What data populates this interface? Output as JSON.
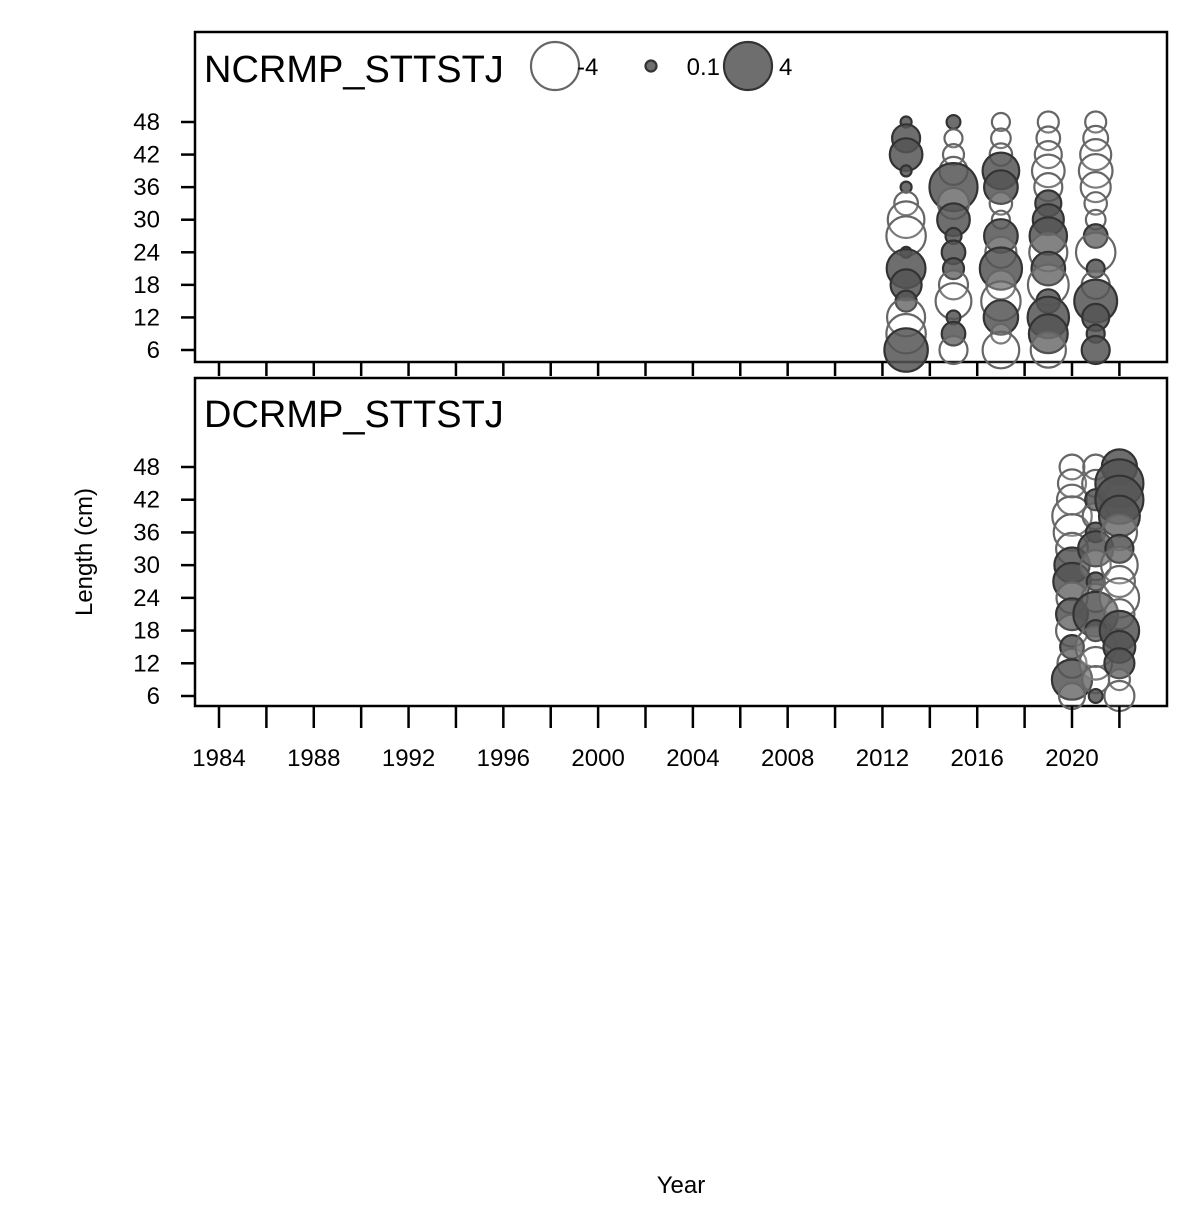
{
  "chart_data": {
    "type": "scatter",
    "subtype": "bubble",
    "xlabel": "Year",
    "ylabel": "Length (cm)",
    "xlim": [
      1982.6,
      2023.8
    ],
    "ylim": [
      4,
      58
    ],
    "x_ticks": [
      1984,
      1986,
      1988,
      1990,
      1992,
      1994,
      1996,
      1998,
      2000,
      2002,
      2004,
      2006,
      2008,
      2010,
      2012,
      2014,
      2016,
      2018,
      2020,
      2022
    ],
    "x_tick_labels": [
      "1984",
      "1988",
      "1992",
      "1996",
      "2000",
      "2004",
      "2008",
      "2012",
      "2016",
      "2020"
    ],
    "x_tick_label_years": [
      1984,
      1988,
      1992,
      1996,
      2000,
      2004,
      2008,
      2012,
      2016,
      2020
    ],
    "y_ticks": [
      6,
      12,
      18,
      24,
      30,
      36,
      42,
      48
    ],
    "y_tick_labels": [
      "6",
      "12",
      "18",
      "24",
      "30",
      "36",
      "42",
      "48"
    ],
    "legend": {
      "placement": "top",
      "entries": [
        {
          "label": "-4",
          "value": -4
        },
        {
          "label": "0.1",
          "value": 0.1
        },
        {
          "label": "4",
          "value": 4
        }
      ]
    },
    "colors": {
      "positive_fill": "#555555",
      "positive_stroke": "#333333",
      "negative_fill": "#ffffff",
      "negative_stroke": "#666666"
    },
    "panels": [
      {
        "title": "NCRMP_STTSTJ",
        "points": [
          {
            "x": 2013,
            "y": 48,
            "v": 0.1
          },
          {
            "x": 2013,
            "y": 45,
            "v": 1.2
          },
          {
            "x": 2013,
            "y": 42,
            "v": 1.7
          },
          {
            "x": 2013,
            "y": 39,
            "v": 0.1
          },
          {
            "x": 2013,
            "y": 36,
            "v": 0.1
          },
          {
            "x": 2013,
            "y": 33,
            "v": -0.8
          },
          {
            "x": 2013,
            "y": 30,
            "v": -2.2
          },
          {
            "x": 2013,
            "y": 27,
            "v": -2.6
          },
          {
            "x": 2013,
            "y": 24,
            "v": 0.1
          },
          {
            "x": 2013,
            "y": 21,
            "v": 2.5
          },
          {
            "x": 2013,
            "y": 18,
            "v": 1.5
          },
          {
            "x": 2013,
            "y": 15,
            "v": 0.6
          },
          {
            "x": 2013,
            "y": 12,
            "v": -2.4
          },
          {
            "x": 2013,
            "y": 9,
            "v": -2.6
          },
          {
            "x": 2013,
            "y": 6,
            "v": 3.2
          },
          {
            "x": 2015,
            "y": 48,
            "v": 0.2
          },
          {
            "x": 2015,
            "y": 45,
            "v": -0.4
          },
          {
            "x": 2015,
            "y": 42,
            "v": -0.6
          },
          {
            "x": 2015,
            "y": 39,
            "v": -1.2
          },
          {
            "x": 2015,
            "y": 36,
            "v": 4.0
          },
          {
            "x": 2015,
            "y": 33,
            "v": -1.5
          },
          {
            "x": 2015,
            "y": 30,
            "v": 1.7
          },
          {
            "x": 2015,
            "y": 27,
            "v": 0.3
          },
          {
            "x": 2015,
            "y": 24,
            "v": 0.8
          },
          {
            "x": 2015,
            "y": 21,
            "v": 0.6
          },
          {
            "x": 2015,
            "y": 18,
            "v": -1.3
          },
          {
            "x": 2015,
            "y": 15,
            "v": -2.1
          },
          {
            "x": 2015,
            "y": 12,
            "v": 0.2
          },
          {
            "x": 2015,
            "y": 9,
            "v": 0.8
          },
          {
            "x": 2015,
            "y": 6,
            "v": -1.2
          },
          {
            "x": 2017,
            "y": 48,
            "v": -0.4
          },
          {
            "x": 2017,
            "y": 45,
            "v": -0.5
          },
          {
            "x": 2017,
            "y": 42,
            "v": -0.7
          },
          {
            "x": 2017,
            "y": 39,
            "v": 2.2
          },
          {
            "x": 2017,
            "y": 36,
            "v": 1.8
          },
          {
            "x": 2017,
            "y": 33,
            "v": -0.7
          },
          {
            "x": 2017,
            "y": 30,
            "v": -0.4
          },
          {
            "x": 2017,
            "y": 27,
            "v": 1.8
          },
          {
            "x": 2017,
            "y": 24,
            "v": -1.5
          },
          {
            "x": 2017,
            "y": 21,
            "v": 3.0
          },
          {
            "x": 2017,
            "y": 18,
            "v": -1.3
          },
          {
            "x": 2017,
            "y": 15,
            "v": -2.6
          },
          {
            "x": 2017,
            "y": 12,
            "v": 1.9
          },
          {
            "x": 2017,
            "y": 9,
            "v": -0.5
          },
          {
            "x": 2017,
            "y": 6,
            "v": -2.2
          },
          {
            "x": 2019,
            "y": 48,
            "v": -0.6
          },
          {
            "x": 2019,
            "y": 45,
            "v": -0.8
          },
          {
            "x": 2019,
            "y": 42,
            "v": -1.1
          },
          {
            "x": 2019,
            "y": 39,
            "v": -1.7
          },
          {
            "x": 2019,
            "y": 36,
            "v": -1.2
          },
          {
            "x": 2019,
            "y": 33,
            "v": 1.0
          },
          {
            "x": 2019,
            "y": 30,
            "v": 1.5
          },
          {
            "x": 2019,
            "y": 27,
            "v": 2.3
          },
          {
            "x": 2019,
            "y": 24,
            "v": -2.4
          },
          {
            "x": 2019,
            "y": 21,
            "v": 1.8
          },
          {
            "x": 2019,
            "y": 18,
            "v": -2.8
          },
          {
            "x": 2019,
            "y": 15,
            "v": 0.8
          },
          {
            "x": 2019,
            "y": 12,
            "v": 2.9
          },
          {
            "x": 2019,
            "y": 9,
            "v": 2.5
          },
          {
            "x": 2019,
            "y": 6,
            "v": -2.0
          },
          {
            "x": 2021,
            "y": 48,
            "v": -0.6
          },
          {
            "x": 2021,
            "y": 45,
            "v": -0.9
          },
          {
            "x": 2021,
            "y": 42,
            "v": -1.5
          },
          {
            "x": 2021,
            "y": 39,
            "v": -1.8
          },
          {
            "x": 2021,
            "y": 36,
            "v": -1.4
          },
          {
            "x": 2021,
            "y": 33,
            "v": -0.7
          },
          {
            "x": 2021,
            "y": 30,
            "v": -0.5
          },
          {
            "x": 2021,
            "y": 27,
            "v": 0.8
          },
          {
            "x": 2021,
            "y": 24,
            "v": -2.6
          },
          {
            "x": 2021,
            "y": 21,
            "v": 0.4
          },
          {
            "x": 2021,
            "y": 18,
            "v": -1.2
          },
          {
            "x": 2021,
            "y": 15,
            "v": 3.1
          },
          {
            "x": 2021,
            "y": 12,
            "v": 1.1
          },
          {
            "x": 2021,
            "y": 9,
            "v": 0.4
          },
          {
            "x": 2021,
            "y": 6,
            "v": 1.2
          }
        ]
      },
      {
        "title": "DCRMP_STTSTJ",
        "points": [
          {
            "x": 2020,
            "y": 48,
            "v": -0.9
          },
          {
            "x": 2020,
            "y": 45,
            "v": -1.2
          },
          {
            "x": 2020,
            "y": 42,
            "v": -1.4
          },
          {
            "x": 2020,
            "y": 39,
            "v": -2.6
          },
          {
            "x": 2020,
            "y": 36,
            "v": -2.2
          },
          {
            "x": 2020,
            "y": 33,
            "v": -1.6
          },
          {
            "x": 2020,
            "y": 30,
            "v": 2.0
          },
          {
            "x": 2020,
            "y": 27,
            "v": 2.3
          },
          {
            "x": 2020,
            "y": 24,
            "v": -1.5
          },
          {
            "x": 2020,
            "y": 21,
            "v": 1.6
          },
          {
            "x": 2020,
            "y": 18,
            "v": -1.6
          },
          {
            "x": 2020,
            "y": 15,
            "v": 0.8
          },
          {
            "x": 2020,
            "y": 12,
            "v": -1.3
          },
          {
            "x": 2020,
            "y": 9,
            "v": 2.7
          },
          {
            "x": 2020,
            "y": 6,
            "v": -1.0
          },
          {
            "x": 2021,
            "y": 48,
            "v": -0.9
          },
          {
            "x": 2021,
            "y": 45,
            "v": -1.1
          },
          {
            "x": 2021,
            "y": 42,
            "v": 0.6
          },
          {
            "x": 2021,
            "y": 39,
            "v": -1.0
          },
          {
            "x": 2021,
            "y": 36,
            "v": 0.5
          },
          {
            "x": 2021,
            "y": 33,
            "v": 2.0
          },
          {
            "x": 2021,
            "y": 30,
            "v": -1.4
          },
          {
            "x": 2021,
            "y": 27,
            "v": 0.4
          },
          {
            "x": 2021,
            "y": 24,
            "v": -1.2
          },
          {
            "x": 2021,
            "y": 21,
            "v": 3.4
          },
          {
            "x": 2021,
            "y": 18,
            "v": 0.6
          },
          {
            "x": 2021,
            "y": 15,
            "v": -2.7
          },
          {
            "x": 2021,
            "y": 12,
            "v": -1.7
          },
          {
            "x": 2021,
            "y": 9,
            "v": -1.1
          },
          {
            "x": 2021,
            "y": 6,
            "v": 0.2
          },
          {
            "x": 2022,
            "y": 48,
            "v": 2.0
          },
          {
            "x": 2022,
            "y": 45,
            "v": 4.0
          },
          {
            "x": 2022,
            "y": 42,
            "v": 4.0
          },
          {
            "x": 2022,
            "y": 39,
            "v": 2.8
          },
          {
            "x": 2022,
            "y": 36,
            "v": -2.0
          },
          {
            "x": 2022,
            "y": 33,
            "v": 1.2
          },
          {
            "x": 2022,
            "y": 30,
            "v": -2.2
          },
          {
            "x": 2022,
            "y": 27,
            "v": -1.5
          },
          {
            "x": 2022,
            "y": 24,
            "v": -2.6
          },
          {
            "x": 2022,
            "y": 21,
            "v": -1.4
          },
          {
            "x": 2022,
            "y": 18,
            "v": 2.6
          },
          {
            "x": 2022,
            "y": 15,
            "v": 1.6
          },
          {
            "x": 2022,
            "y": 12,
            "v": 1.4
          },
          {
            "x": 2022,
            "y": 9,
            "v": -0.6
          },
          {
            "x": 2022,
            "y": 6,
            "v": -1.4
          }
        ]
      }
    ]
  }
}
